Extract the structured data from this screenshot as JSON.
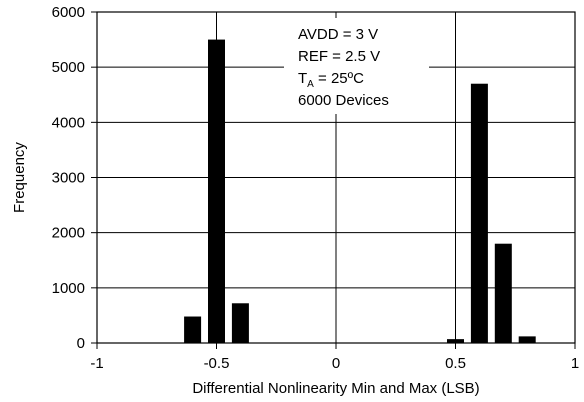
{
  "chart_data": {
    "type": "bar",
    "xlabel": "Differential Nonlinearity Min and Max (LSB)",
    "ylabel": "Frequency",
    "xlim": [
      -1,
      1
    ],
    "ylim": [
      0,
      6000
    ],
    "x_ticks": [
      -1,
      -0.5,
      0,
      0.5,
      1
    ],
    "x_tick_labels": [
      "-1",
      "-0.5",
      "0",
      "0.5",
      "1"
    ],
    "y_ticks": [
      0,
      1000,
      2000,
      3000,
      4000,
      5000,
      6000
    ],
    "y_tick_labels": [
      "0",
      "1000",
      "2000",
      "3000",
      "4000",
      "5000",
      "6000"
    ],
    "grid": true,
    "bar_color": "#000000",
    "bars": [
      {
        "x": -0.6,
        "value": 480
      },
      {
        "x": -0.5,
        "value": 5500
      },
      {
        "x": -0.4,
        "value": 720
      },
      {
        "x": 0.5,
        "value": 70
      },
      {
        "x": 0.6,
        "value": 4700
      },
      {
        "x": 0.7,
        "value": 1800
      },
      {
        "x": 0.8,
        "value": 120
      }
    ],
    "annotation": {
      "lines": [
        {
          "text": "AVDD = 3 V"
        },
        {
          "text": "REF = 2.5 V"
        },
        {
          "text": "T",
          "sub": "A",
          "rest": " = 25ºC"
        },
        {
          "text": "6000 Devices"
        }
      ]
    }
  }
}
